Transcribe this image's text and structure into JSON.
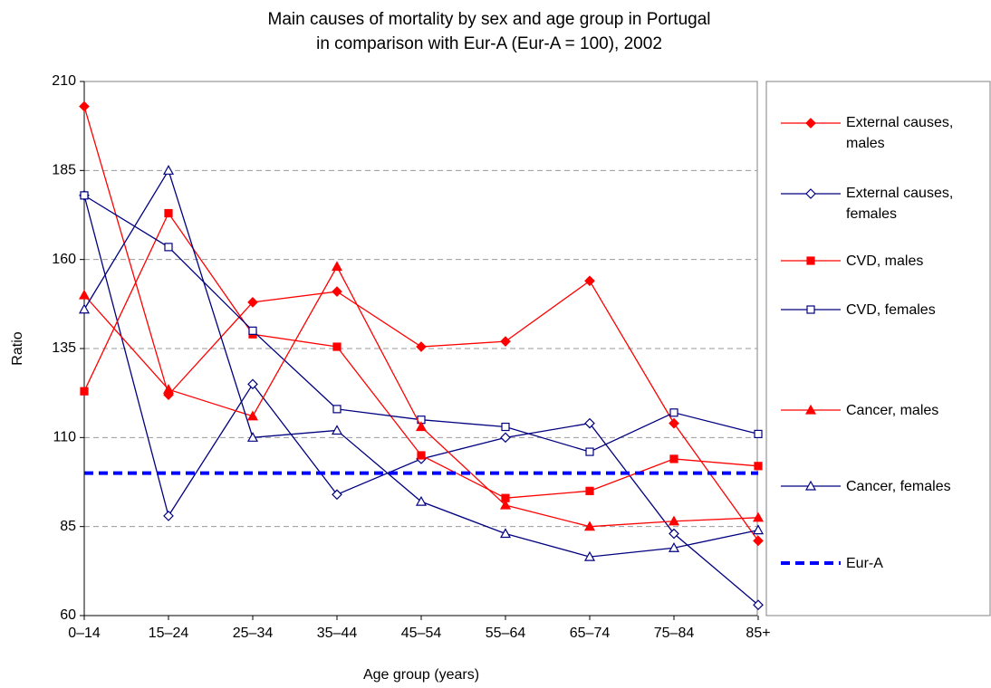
{
  "chart_data": {
    "type": "line",
    "title": "Main causes of mortality by sex and age group in Portugal",
    "subtitle": "in comparison with Eur-A (Eur-A = 100), 2002",
    "x_label": "Age group (years)",
    "y_label": "Ratio",
    "categories": [
      "0–14",
      "15–24",
      "25–34",
      "35–44",
      "45–54",
      "55–64",
      "65–74",
      "75–84",
      "85+"
    ],
    "ylim": [
      60,
      210
    ],
    "yticks": [
      60,
      85,
      110,
      135,
      160,
      185,
      210
    ],
    "grid": true,
    "legend": "right",
    "series": [
      {
        "name": "External causes, males",
        "color": "#ff0000",
        "marker": "diamond",
        "marker_fill": true,
        "values": [
          203,
          122,
          148,
          151,
          135.5,
          137,
          154,
          114,
          81
        ]
      },
      {
        "name": "External causes, females",
        "color": "#000080",
        "marker": "diamond",
        "marker_fill": false,
        "values": [
          178,
          88,
          125,
          94,
          104,
          110,
          114,
          83,
          63
        ]
      },
      {
        "name": "CVD, males",
        "color": "#ff0000",
        "marker": "square",
        "marker_fill": true,
        "values": [
          123,
          173,
          139,
          135.5,
          105,
          93,
          95,
          104,
          102
        ]
      },
      {
        "name": "CVD, females",
        "color": "#000080",
        "marker": "square",
        "marker_fill": false,
        "values": [
          178,
          163.5,
          140,
          118,
          115,
          113,
          106,
          117,
          111
        ]
      },
      {
        "name": "Cancer, males",
        "color": "#ff0000",
        "marker": "triangle",
        "marker_fill": true,
        "values": [
          150,
          123.5,
          116,
          158,
          113,
          91,
          85,
          86.5,
          87.5
        ]
      },
      {
        "name": "Cancer, females",
        "color": "#000080",
        "marker": "triangle",
        "marker_fill": false,
        "values": [
          146,
          185,
          110,
          112,
          92,
          83,
          76.5,
          79,
          84
        ]
      },
      {
        "name": "Eur-A",
        "color": "#0000ff",
        "marker": "none",
        "dashed": true,
        "values": [
          100,
          100,
          100,
          100,
          100,
          100,
          100,
          100,
          100
        ]
      }
    ]
  }
}
